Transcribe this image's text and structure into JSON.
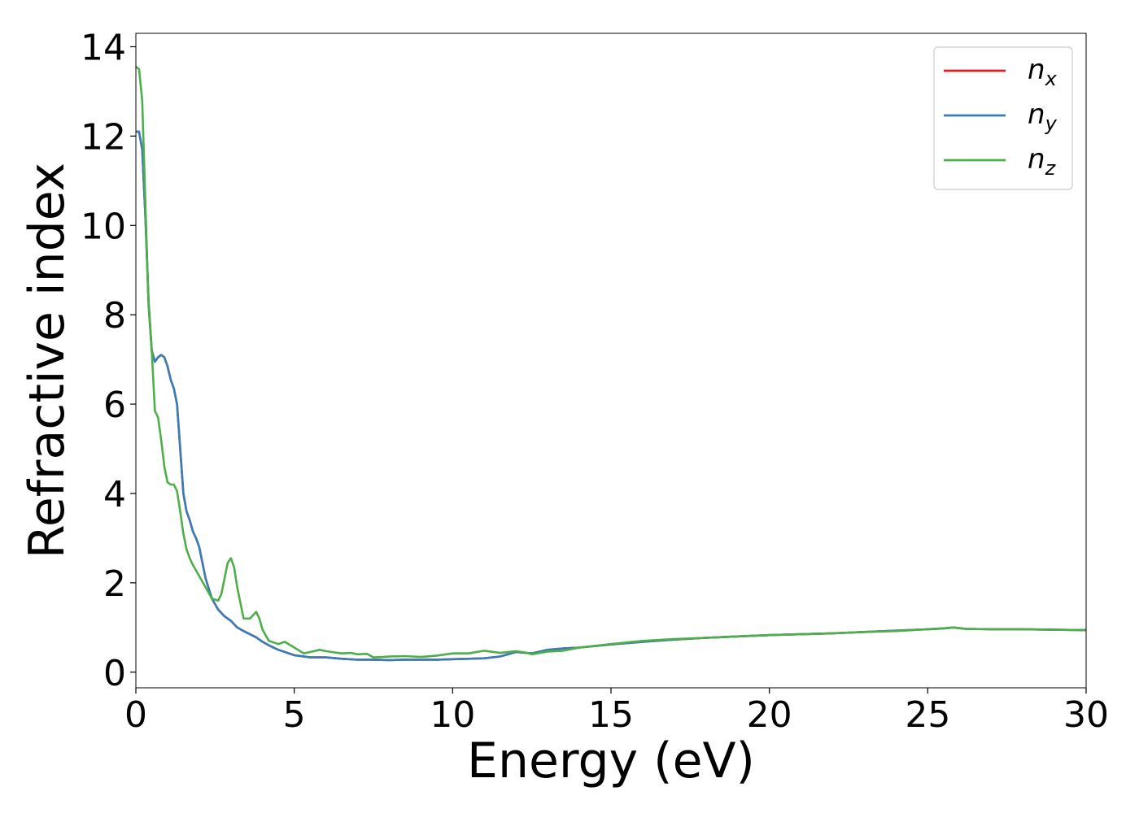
{
  "chart_data": {
    "type": "line",
    "xlabel": "Energy (eV)",
    "ylabel": "Refractive index",
    "xlim": [
      0,
      30
    ],
    "ylim": [
      -0.35,
      14.3
    ],
    "xticks": [
      0,
      5,
      10,
      15,
      20,
      25,
      30
    ],
    "yticks": [
      0,
      2,
      4,
      6,
      8,
      10,
      12,
      14
    ],
    "xtick_labels": [
      "0",
      "5",
      "10",
      "15",
      "20",
      "25",
      "30"
    ],
    "ytick_labels": [
      "0",
      "2",
      "4",
      "6",
      "8",
      "10",
      "12",
      "14"
    ],
    "grid": false,
    "legend_position": "top-right",
    "series": [
      {
        "name": "n_x",
        "label_base": "n",
        "label_sub": "x",
        "color": "#e41a1c",
        "x": [
          0.0,
          0.1,
          0.2,
          0.3,
          0.4,
          0.5,
          0.6,
          0.7,
          0.8,
          0.9,
          1.0,
          1.1,
          1.2,
          1.3,
          1.4,
          1.5,
          1.6,
          1.7,
          1.8,
          1.9,
          2.0,
          2.2,
          2.4,
          2.6,
          2.8,
          3.0,
          3.2,
          3.4,
          3.6,
          3.8,
          4.0,
          4.2,
          4.5,
          5.0,
          5.5,
          6.0,
          6.5,
          7.0,
          7.5,
          8.0,
          8.5,
          9.0,
          9.5,
          10.0,
          10.5,
          11.0,
          11.5,
          12.0,
          12.5,
          13.0,
          13.5,
          14.0,
          15.0,
          16.0,
          17.0,
          18.0,
          19.0,
          20.0,
          21.0,
          22.0,
          23.0,
          24.0,
          25.0,
          25.5,
          25.8,
          26.2,
          27.0,
          28.0,
          29.0,
          30.0
        ],
        "y": [
          12.1,
          12.1,
          11.7,
          10.2,
          8.3,
          7.2,
          6.95,
          7.05,
          7.1,
          7.05,
          6.85,
          6.55,
          6.35,
          6.0,
          5.0,
          4.0,
          3.6,
          3.4,
          3.15,
          3.0,
          2.8,
          2.1,
          1.65,
          1.4,
          1.25,
          1.15,
          1.0,
          0.92,
          0.85,
          0.78,
          0.68,
          0.6,
          0.5,
          0.38,
          0.33,
          0.33,
          0.3,
          0.28,
          0.28,
          0.27,
          0.28,
          0.28,
          0.28,
          0.29,
          0.3,
          0.31,
          0.35,
          0.45,
          0.42,
          0.5,
          0.53,
          0.55,
          0.62,
          0.68,
          0.73,
          0.77,
          0.8,
          0.83,
          0.85,
          0.87,
          0.9,
          0.93,
          0.96,
          0.98,
          1.0,
          0.97,
          0.96,
          0.96,
          0.95,
          0.94
        ]
      },
      {
        "name": "n_y",
        "label_base": "n",
        "label_sub": "y",
        "color": "#377eb8",
        "x": [
          0.0,
          0.1,
          0.2,
          0.3,
          0.4,
          0.5,
          0.6,
          0.7,
          0.8,
          0.9,
          1.0,
          1.1,
          1.2,
          1.3,
          1.4,
          1.5,
          1.6,
          1.7,
          1.8,
          1.9,
          2.0,
          2.2,
          2.4,
          2.6,
          2.8,
          3.0,
          3.2,
          3.4,
          3.6,
          3.8,
          4.0,
          4.2,
          4.5,
          5.0,
          5.5,
          6.0,
          6.5,
          7.0,
          7.5,
          8.0,
          8.5,
          9.0,
          9.5,
          10.0,
          10.5,
          11.0,
          11.5,
          12.0,
          12.5,
          13.0,
          13.5,
          14.0,
          15.0,
          16.0,
          17.0,
          18.0,
          19.0,
          20.0,
          21.0,
          22.0,
          23.0,
          24.0,
          25.0,
          25.5,
          25.8,
          26.2,
          27.0,
          28.0,
          29.0,
          30.0
        ],
        "y": [
          12.1,
          12.1,
          11.7,
          10.2,
          8.3,
          7.2,
          6.95,
          7.05,
          7.1,
          7.05,
          6.85,
          6.55,
          6.35,
          6.0,
          5.0,
          4.0,
          3.6,
          3.4,
          3.15,
          3.0,
          2.8,
          2.1,
          1.65,
          1.4,
          1.25,
          1.15,
          1.0,
          0.92,
          0.85,
          0.78,
          0.68,
          0.6,
          0.5,
          0.38,
          0.33,
          0.33,
          0.3,
          0.28,
          0.28,
          0.27,
          0.28,
          0.28,
          0.28,
          0.29,
          0.3,
          0.31,
          0.35,
          0.45,
          0.42,
          0.5,
          0.53,
          0.55,
          0.62,
          0.68,
          0.73,
          0.77,
          0.8,
          0.83,
          0.85,
          0.87,
          0.9,
          0.93,
          0.96,
          0.98,
          1.0,
          0.97,
          0.96,
          0.96,
          0.95,
          0.94
        ]
      },
      {
        "name": "n_z",
        "label_base": "n",
        "label_sub": "z",
        "color": "#4daf4a",
        "x": [
          0.0,
          0.1,
          0.2,
          0.3,
          0.4,
          0.5,
          0.6,
          0.7,
          0.8,
          0.9,
          1.0,
          1.1,
          1.2,
          1.3,
          1.4,
          1.5,
          1.6,
          1.7,
          1.8,
          2.0,
          2.2,
          2.4,
          2.6,
          2.7,
          2.8,
          2.9,
          3.0,
          3.1,
          3.2,
          3.4,
          3.6,
          3.8,
          3.9,
          4.0,
          4.2,
          4.5,
          4.7,
          5.0,
          5.3,
          5.5,
          5.8,
          6.0,
          6.3,
          6.5,
          6.8,
          7.0,
          7.3,
          7.5,
          7.8,
          8.0,
          8.5,
          9.0,
          9.5,
          10.0,
          10.5,
          11.0,
          11.5,
          12.0,
          12.3,
          12.5,
          13.0,
          13.5,
          14.0,
          15.0,
          16.0,
          17.0,
          18.0,
          19.0,
          20.0,
          21.0,
          22.0,
          23.0,
          24.0,
          25.0,
          25.5,
          25.8,
          26.2,
          27.0,
          28.0,
          29.0,
          30.0
        ],
        "y": [
          13.55,
          13.5,
          12.8,
          10.5,
          8.2,
          7.2,
          5.85,
          5.7,
          5.2,
          4.6,
          4.25,
          4.2,
          4.2,
          4.05,
          3.6,
          3.1,
          2.75,
          2.55,
          2.4,
          2.15,
          1.9,
          1.65,
          1.6,
          1.75,
          2.1,
          2.45,
          2.55,
          2.35,
          1.9,
          1.2,
          1.2,
          1.35,
          1.2,
          0.95,
          0.7,
          0.63,
          0.68,
          0.55,
          0.42,
          0.45,
          0.5,
          0.47,
          0.44,
          0.42,
          0.43,
          0.4,
          0.41,
          0.33,
          0.34,
          0.35,
          0.36,
          0.34,
          0.37,
          0.42,
          0.42,
          0.48,
          0.43,
          0.47,
          0.44,
          0.4,
          0.46,
          0.48,
          0.55,
          0.63,
          0.7,
          0.74,
          0.77,
          0.8,
          0.83,
          0.85,
          0.87,
          0.9,
          0.92,
          0.96,
          0.98,
          1.0,
          0.97,
          0.96,
          0.96,
          0.95,
          0.94
        ]
      }
    ]
  }
}
